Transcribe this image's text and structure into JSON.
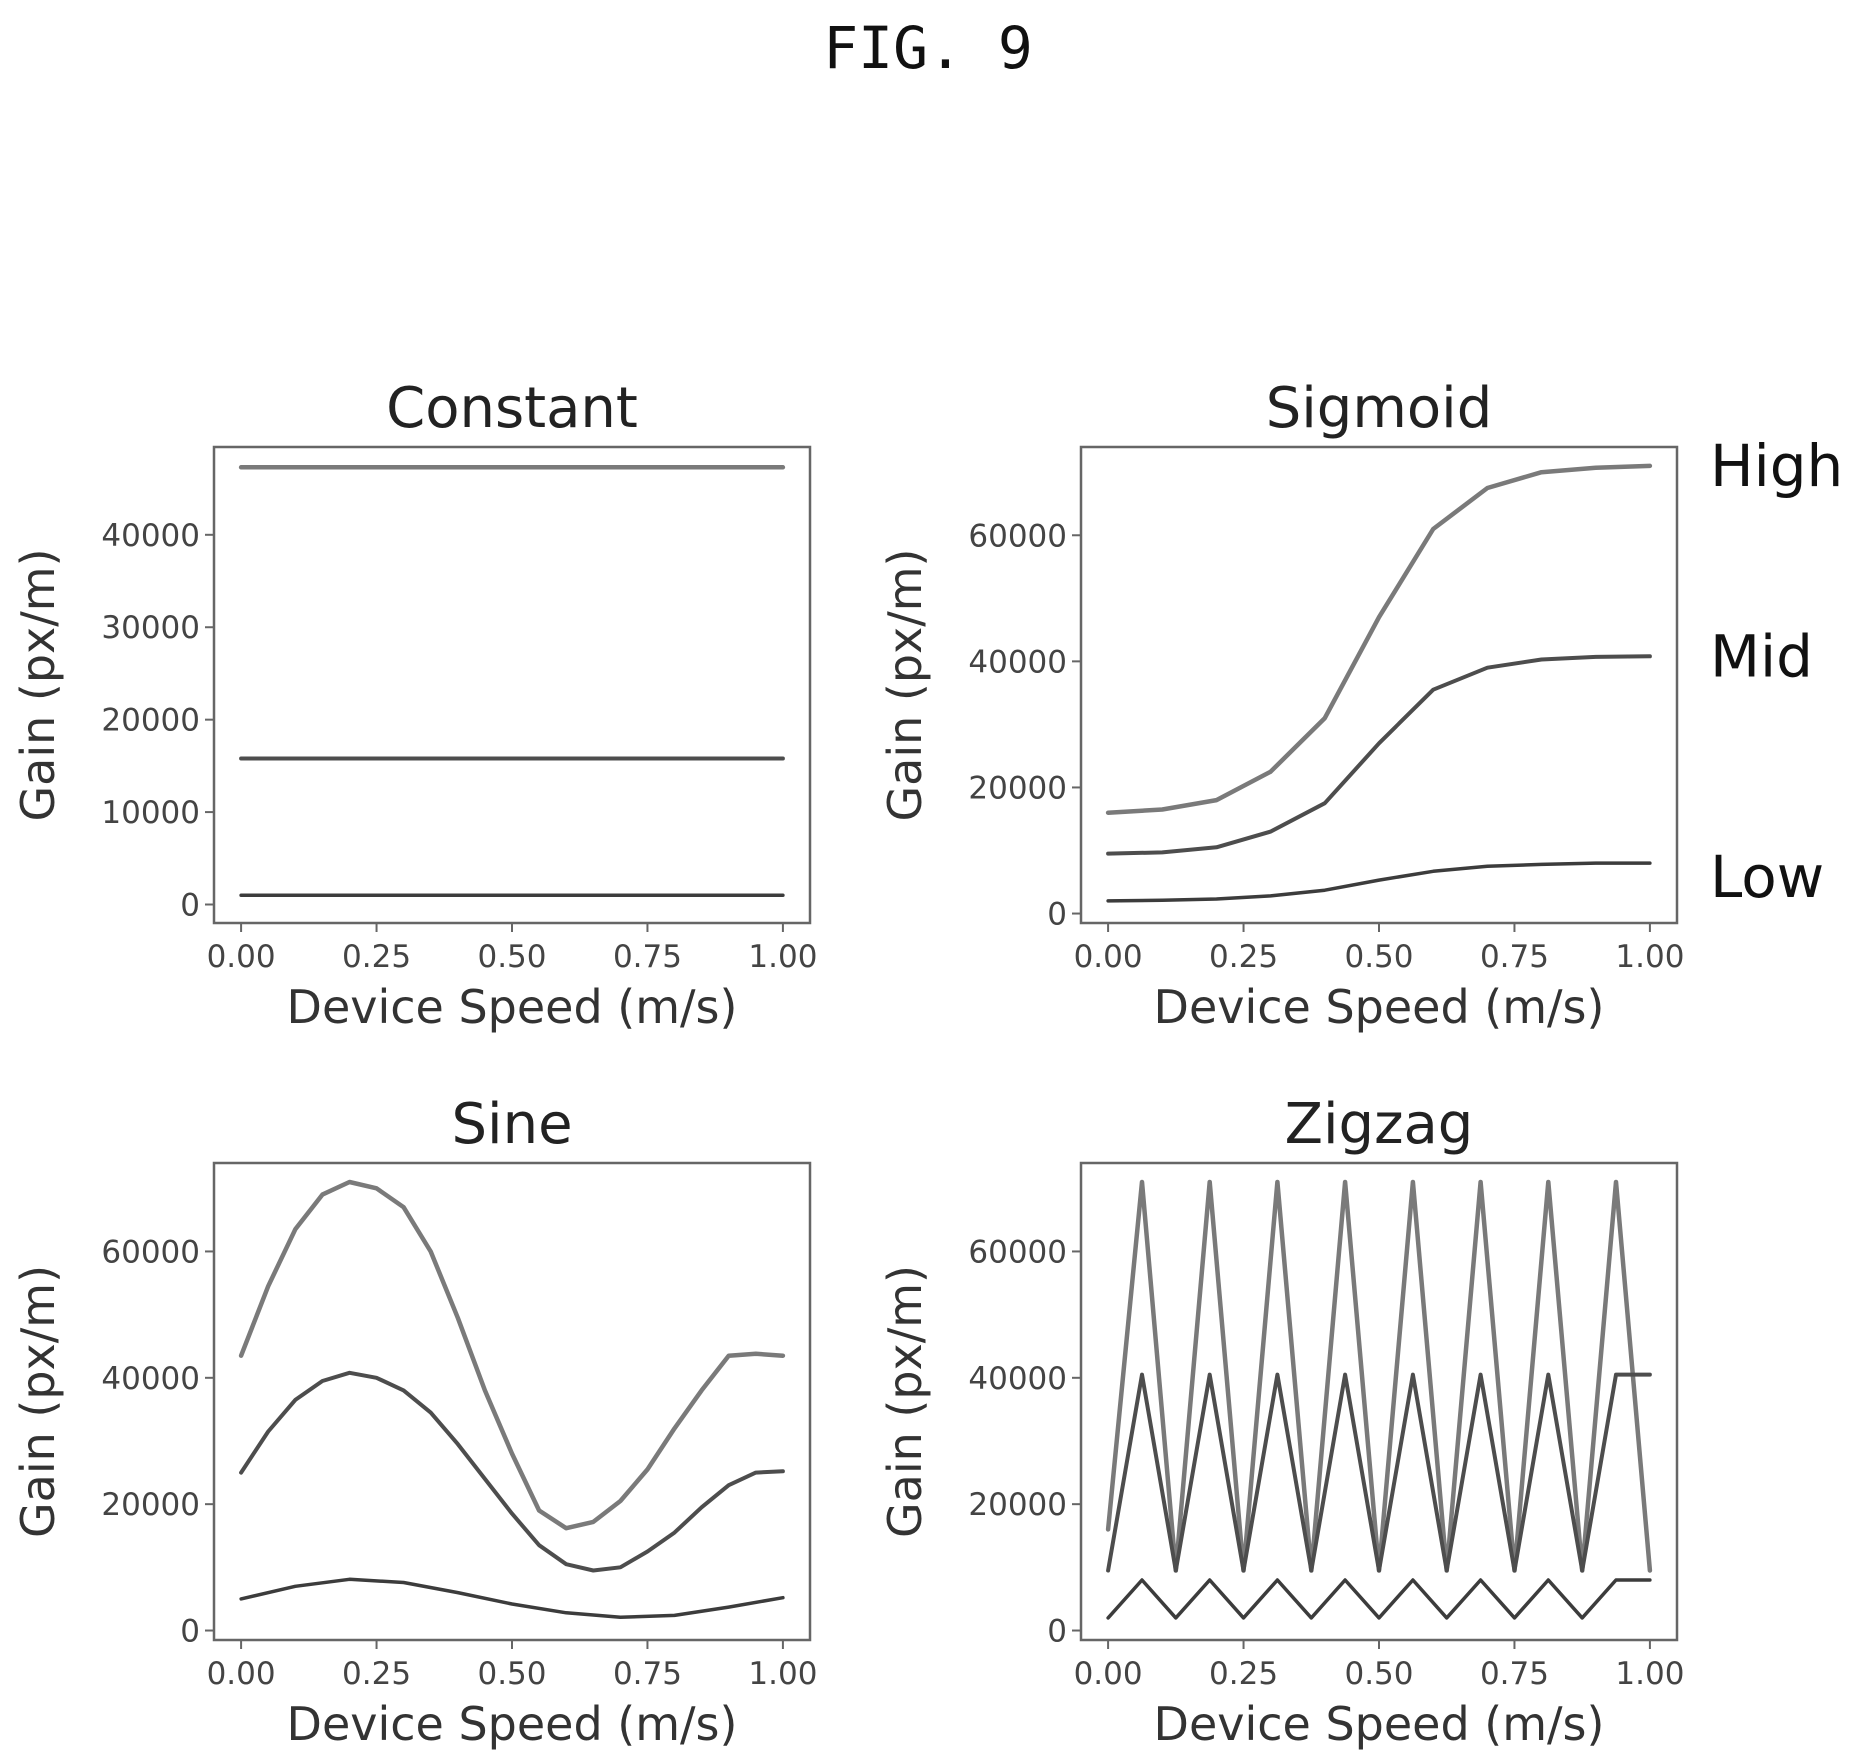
{
  "figure_label": "FIG. 9",
  "series_labels": [
    "High",
    "Mid",
    "Low"
  ],
  "colors": {
    "high": "#7a7a7a",
    "mid": "#4d4d4d",
    "low": "#3c3c3c"
  },
  "chart_data": [
    {
      "type": "line",
      "title": "Constant",
      "xlabel": "Device Speed (m/s)",
      "ylabel": "Gain (px/m)",
      "xlim": [
        -0.05,
        1.05
      ],
      "ylim": [
        -2000,
        49500
      ],
      "xticks": [
        "0.00",
        "0.25",
        "0.50",
        "0.75",
        "1.00"
      ],
      "xtick_values": [
        0,
        0.25,
        0.5,
        0.75,
        1.0
      ],
      "yticks": [
        "0",
        "10000",
        "20000",
        "30000",
        "40000"
      ],
      "ytick_values": [
        0,
        10000,
        20000,
        30000,
        40000
      ],
      "series": [
        {
          "x": [
            0,
            1
          ],
          "values": [
            47300,
            47300
          ]
        },
        {
          "x": [
            0,
            1
          ],
          "values": [
            15800,
            15800
          ]
        },
        {
          "x": [
            0,
            1
          ],
          "values": [
            1000,
            1000
          ]
        }
      ]
    },
    {
      "type": "line",
      "title": "Sigmoid",
      "xlabel": "Device Speed (m/s)",
      "ylabel": "Gain (px/m)",
      "xlim": [
        -0.05,
        1.05
      ],
      "ylim": [
        -1500,
        74000
      ],
      "xticks": [
        "0.00",
        "0.25",
        "0.50",
        "0.75",
        "1.00"
      ],
      "xtick_values": [
        0,
        0.25,
        0.5,
        0.75,
        1.0
      ],
      "yticks": [
        "0",
        "20000",
        "40000",
        "60000"
      ],
      "ytick_values": [
        0,
        20000,
        40000,
        60000
      ],
      "series": [
        {
          "x": [
            0,
            0.1,
            0.2,
            0.3,
            0.4,
            0.5,
            0.6,
            0.7,
            0.8,
            0.9,
            1.0
          ],
          "values": [
            16000,
            16500,
            18000,
            22500,
            31000,
            47000,
            61000,
            67500,
            70000,
            70700,
            71000
          ]
        },
        {
          "x": [
            0,
            0.1,
            0.2,
            0.3,
            0.4,
            0.5,
            0.6,
            0.7,
            0.8,
            0.9,
            1.0
          ],
          "values": [
            9500,
            9700,
            10500,
            13000,
            17500,
            27000,
            35500,
            39000,
            40300,
            40700,
            40800
          ]
        },
        {
          "x": [
            0,
            0.1,
            0.2,
            0.3,
            0.4,
            0.5,
            0.6,
            0.7,
            0.8,
            0.9,
            1.0
          ],
          "values": [
            2000,
            2100,
            2300,
            2800,
            3700,
            5300,
            6700,
            7500,
            7800,
            8000,
            8000
          ]
        }
      ]
    },
    {
      "type": "line",
      "title": "Sine",
      "xlabel": "Device Speed (m/s)",
      "ylabel": "Gain (px/m)",
      "xlim": [
        -0.05,
        1.05
      ],
      "ylim": [
        -1500,
        74000
      ],
      "xticks": [
        "0.00",
        "0.25",
        "0.50",
        "0.75",
        "1.00"
      ],
      "xtick_values": [
        0,
        0.25,
        0.5,
        0.75,
        1.0
      ],
      "yticks": [
        "0",
        "20000",
        "40000",
        "60000"
      ],
      "ytick_values": [
        0,
        20000,
        40000,
        60000
      ],
      "series": [
        {
          "x": [
            0,
            0.05,
            0.1,
            0.15,
            0.2,
            0.25,
            0.3,
            0.35,
            0.4,
            0.45,
            0.5,
            0.55,
            0.6,
            0.65,
            0.7,
            0.75,
            0.8,
            0.85,
            0.9,
            0.95,
            1.0
          ],
          "values": [
            43500,
            54500,
            63500,
            69000,
            71000,
            70000,
            67000,
            60000,
            49500,
            38000,
            28000,
            19000,
            16200,
            17200,
            20500,
            25500,
            32000,
            38000,
            43500,
            43800,
            43500
          ]
        },
        {
          "x": [
            0,
            0.05,
            0.1,
            0.15,
            0.2,
            0.25,
            0.3,
            0.35,
            0.4,
            0.45,
            0.5,
            0.55,
            0.6,
            0.65,
            0.7,
            0.75,
            0.8,
            0.85,
            0.9,
            0.95,
            1.0
          ],
          "values": [
            25000,
            31500,
            36500,
            39500,
            40800,
            40000,
            38000,
            34500,
            29500,
            24000,
            18500,
            13500,
            10500,
            9500,
            10000,
            12500,
            15500,
            19500,
            23000,
            25000,
            25200
          ]
        },
        {
          "x": [
            0,
            0.1,
            0.2,
            0.3,
            0.4,
            0.5,
            0.6,
            0.7,
            0.8,
            0.9,
            1.0
          ],
          "values": [
            5000,
            7000,
            8100,
            7600,
            6000,
            4200,
            2800,
            2100,
            2400,
            3700,
            5200
          ]
        }
      ]
    },
    {
      "type": "line",
      "title": "Zigzag",
      "xlabel": "Device Speed (m/s)",
      "ylabel": "Gain (px/m)",
      "xlim": [
        -0.05,
        1.05
      ],
      "ylim": [
        -1500,
        74000
      ],
      "xticks": [
        "0.00",
        "0.25",
        "0.50",
        "0.75",
        "1.00"
      ],
      "xtick_values": [
        0,
        0.25,
        0.5,
        0.75,
        1.0
      ],
      "yticks": [
        "0",
        "20000",
        "40000",
        "60000"
      ],
      "ytick_values": [
        0,
        20000,
        40000,
        60000
      ],
      "series": [
        {
          "x": [
            0,
            0.0625,
            0.125,
            0.1875,
            0.25,
            0.3125,
            0.375,
            0.4375,
            0.5,
            0.5625,
            0.625,
            0.6875,
            0.75,
            0.8125,
            0.875,
            0.9375,
            1.0
          ],
          "values": [
            16000,
            71000,
            9500,
            71000,
            9500,
            71000,
            9500,
            71000,
            9500,
            71000,
            9500,
            71000,
            9500,
            71000,
            9500,
            71000,
            9500
          ]
        },
        {
          "x": [
            0,
            0.0625,
            0.125,
            0.1875,
            0.25,
            0.3125,
            0.375,
            0.4375,
            0.5,
            0.5625,
            0.625,
            0.6875,
            0.75,
            0.8125,
            0.875,
            0.9375,
            1.0
          ],
          "values": [
            9500,
            40500,
            9500,
            40500,
            9500,
            40500,
            9500,
            40500,
            9500,
            40500,
            9500,
            40500,
            9500,
            40500,
            9500,
            40500,
            40500
          ]
        },
        {
          "x": [
            0,
            0.0625,
            0.125,
            0.1875,
            0.25,
            0.3125,
            0.375,
            0.4375,
            0.5,
            0.5625,
            0.625,
            0.6875,
            0.75,
            0.8125,
            0.875,
            0.9375,
            1.0
          ],
          "values": [
            2000,
            8000,
            2000,
            8000,
            2000,
            8000,
            2000,
            8000,
            2000,
            8000,
            2000,
            8000,
            2000,
            8000,
            2000,
            8000,
            8000
          ]
        }
      ]
    }
  ]
}
